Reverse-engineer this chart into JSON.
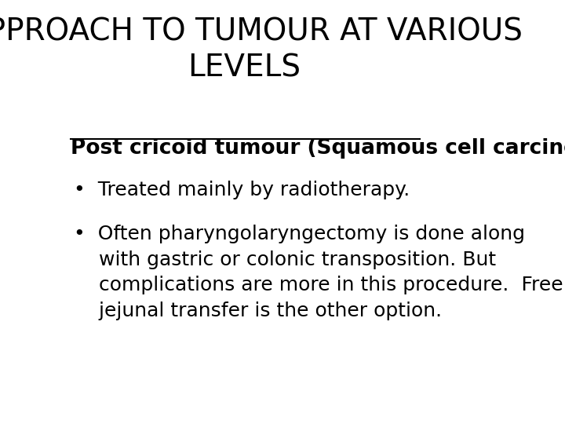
{
  "title_line1": "APPROACH TO TUMOUR AT VARIOUS",
  "title_line2": "LEVELS",
  "title_fontsize": 28,
  "title_color": "#000000",
  "background_color": "#ffffff",
  "subtitle": "Post cricoid tumour (Squamous cell carcinoma):",
  "subtitle_fontsize": 19,
  "bullet1": "Treated mainly by radiotherapy.",
  "bullet2_line1": "Often pharyngolaryngectomy is done along",
  "bullet2_line2": "with gastric or colonic transposition. But",
  "bullet2_line3": "complications are more in this procedure.  Free",
  "bullet2_line4": "jejunal transfer is the other option.",
  "bullet_fontsize": 18,
  "text_color": "#000000",
  "figwidth": 7.2,
  "figheight": 5.4,
  "dpi": 100
}
